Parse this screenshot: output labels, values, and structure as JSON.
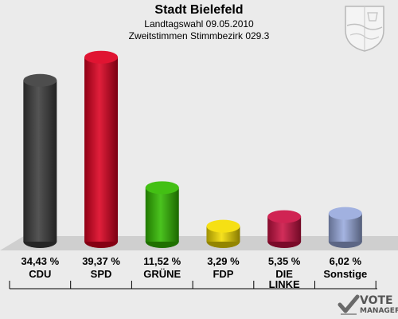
{
  "header": {
    "title": "Stadt Bielefeld",
    "subtitle1": "Landtagswahl 09.05.2010",
    "subtitle2": "Zweitstimmen Stimmbezirk 029.3"
  },
  "logo": {
    "line1": "VOTE",
    "line2": "MANAGER"
  },
  "chart_data": {
    "type": "bar",
    "categories": [
      "CDU",
      "SPD",
      "GRÜNE",
      "FDP",
      "DIE LINKE",
      "Sonstige"
    ],
    "values": [
      34.43,
      39.37,
      11.52,
      3.29,
      5.35,
      6.02
    ],
    "value_labels": [
      "34,43 %",
      "39,37 %",
      "11,52 %",
      "3,29 %",
      "5,35 %",
      "6,02 %"
    ],
    "colors": [
      "#3d3d3d",
      "#dd0020",
      "#33bb00",
      "#f5dd00",
      "#cc1144",
      "#99aadd"
    ],
    "ylim": [
      0,
      40
    ],
    "grid": false
  }
}
